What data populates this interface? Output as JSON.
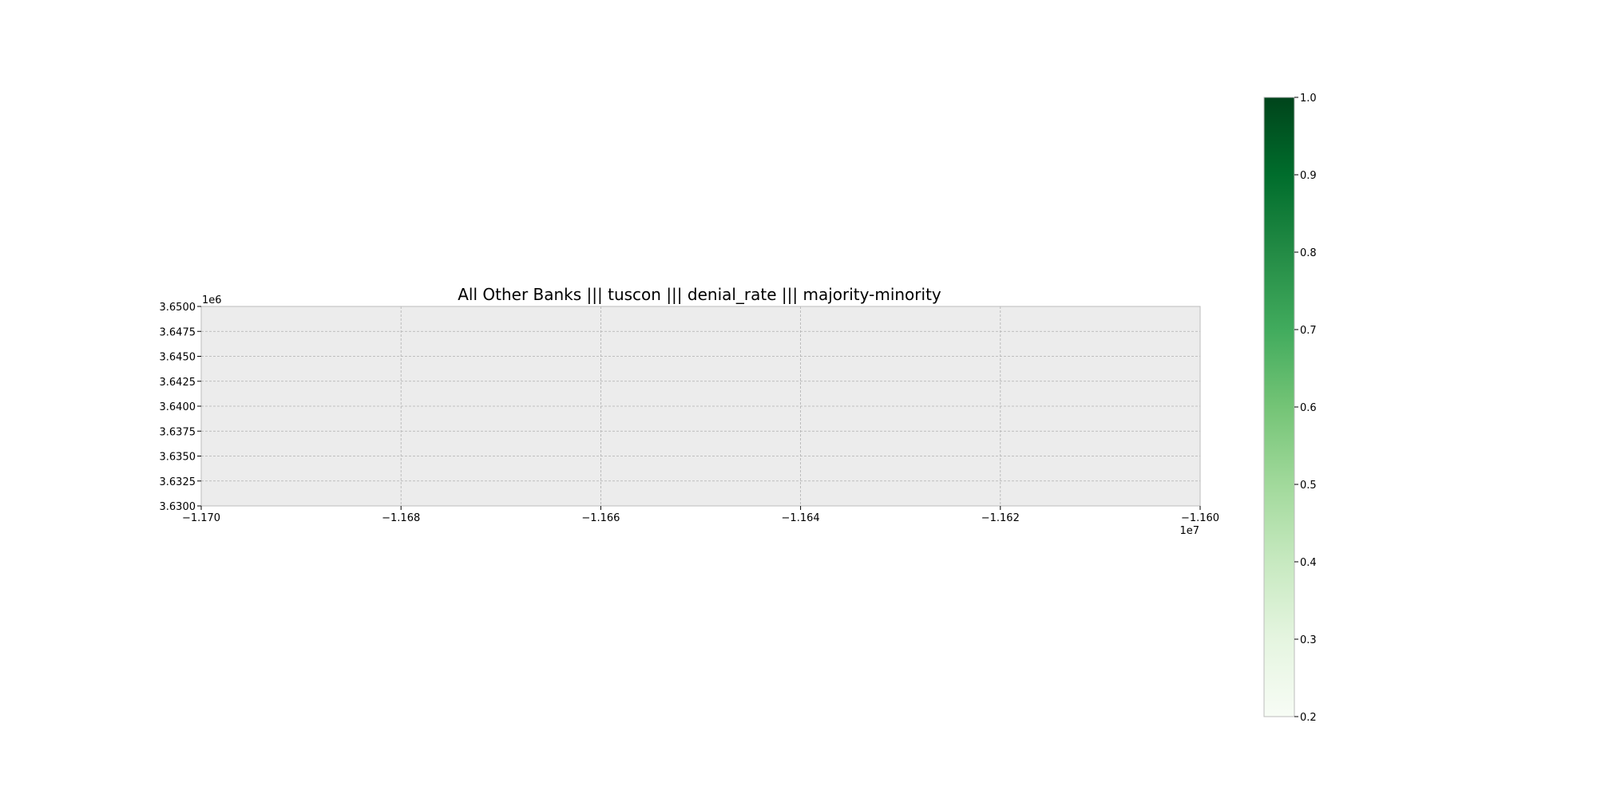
{
  "chart_data": {
    "type": "heatmap",
    "title": "All Other Banks ||| tuscon ||| denial_rate ||| majority-minority",
    "xlabel": "",
    "ylabel": "",
    "xlim": [
      -11700000,
      -11600000
    ],
    "ylim": [
      3630000,
      3650000
    ],
    "x_offset_label": "1e7",
    "y_offset_label": "1e6",
    "x_ticks": [
      {
        "value": -11700000,
        "label": "−1.170"
      },
      {
        "value": -11680000,
        "label": "−1.168"
      },
      {
        "value": -11660000,
        "label": "−1.166"
      },
      {
        "value": -11640000,
        "label": "−1.164"
      },
      {
        "value": -11620000,
        "label": "−1.162"
      },
      {
        "value": -11600000,
        "label": "−1.160"
      }
    ],
    "y_ticks": [
      {
        "value": 3630000,
        "label": "3.6300"
      },
      {
        "value": 3632500,
        "label": "3.6325"
      },
      {
        "value": 3635000,
        "label": "3.6350"
      },
      {
        "value": 3637500,
        "label": "3.6375"
      },
      {
        "value": 3640000,
        "label": "3.6400"
      },
      {
        "value": 3642500,
        "label": "3.6425"
      },
      {
        "value": 3645000,
        "label": "3.6450"
      },
      {
        "value": 3647500,
        "label": "3.6475"
      },
      {
        "value": 3650000,
        "label": "3.6500"
      }
    ],
    "grid": true,
    "data": [],
    "colorbar": {
      "colormap": "Greens",
      "range": [
        0.2,
        1.0
      ],
      "ticks": [
        "0.2",
        "0.3",
        "0.4",
        "0.5",
        "0.6",
        "0.7",
        "0.8",
        "0.9",
        "1.0"
      ],
      "colors": [
        "#f7fcf5",
        "#e5f5e0",
        "#c7e9c0",
        "#a1d99b",
        "#74c476",
        "#41ab5d",
        "#238b45",
        "#006d2c",
        "#00441b"
      ]
    },
    "axes_background": "#ececec",
    "grid_color": "#b0b0b0"
  }
}
